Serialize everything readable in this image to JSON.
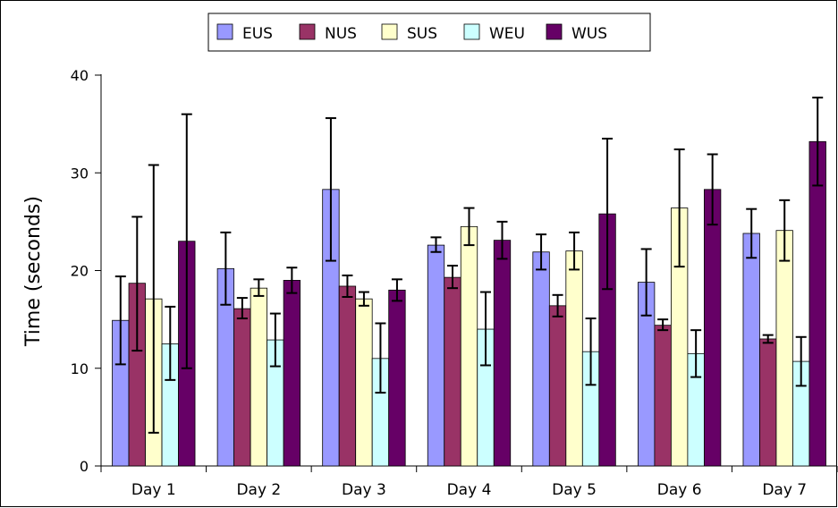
{
  "chart_data": {
    "type": "bar",
    "title": "",
    "xlabel": "",
    "ylabel": "Time (seconds)",
    "ylim": [
      0,
      40
    ],
    "yticks": [
      0,
      10,
      20,
      30,
      40
    ],
    "legend_position": "top-center",
    "grid": false,
    "error_bars": true,
    "categories": [
      "Day 1",
      "Day 2",
      "Day 3",
      "Day 4",
      "Day 5",
      "Day 6",
      "Day 7"
    ],
    "series": [
      {
        "name": "EUS",
        "color": "#9999ff",
        "values": [
          14.9,
          20.2,
          28.3,
          22.6,
          21.9,
          18.8,
          23.8
        ],
        "err_low": [
          10.4,
          16.5,
          21.0,
          21.9,
          20.1,
          15.4,
          21.3
        ],
        "err_high": [
          19.4,
          23.9,
          35.6,
          23.4,
          23.7,
          22.2,
          26.3
        ]
      },
      {
        "name": "NUS",
        "color": "#993366",
        "values": [
          18.7,
          16.1,
          18.4,
          19.3,
          16.4,
          14.4,
          13.0
        ],
        "err_low": [
          11.8,
          15.1,
          17.3,
          18.2,
          15.3,
          13.9,
          12.6
        ],
        "err_high": [
          25.5,
          17.2,
          19.5,
          20.5,
          17.5,
          15.0,
          13.4
        ]
      },
      {
        "name": "SUS",
        "color": "#ffffcc",
        "values": [
          17.1,
          18.2,
          17.1,
          24.5,
          22.0,
          26.4,
          24.1
        ],
        "err_low": [
          3.4,
          17.4,
          16.4,
          22.6,
          20.1,
          20.4,
          21.0
        ],
        "err_high": [
          30.8,
          19.1,
          17.8,
          26.4,
          23.9,
          32.4,
          27.2
        ]
      },
      {
        "name": "WEU",
        "color": "#ccffff",
        "values": [
          12.5,
          12.9,
          11.0,
          14.0,
          11.7,
          11.5,
          10.7
        ],
        "err_low": [
          8.8,
          10.2,
          7.5,
          10.3,
          8.3,
          9.1,
          8.2
        ],
        "err_high": [
          16.3,
          15.6,
          14.6,
          17.8,
          15.1,
          13.9,
          13.2
        ]
      },
      {
        "name": "WUS",
        "color": "#660066",
        "values": [
          23.0,
          19.0,
          18.0,
          23.1,
          25.8,
          28.3,
          33.2
        ],
        "err_low": [
          10.0,
          17.7,
          16.9,
          21.2,
          18.1,
          24.7,
          28.7
        ],
        "err_high": [
          36.0,
          20.3,
          19.1,
          25.0,
          33.5,
          31.9,
          37.7
        ]
      }
    ]
  }
}
